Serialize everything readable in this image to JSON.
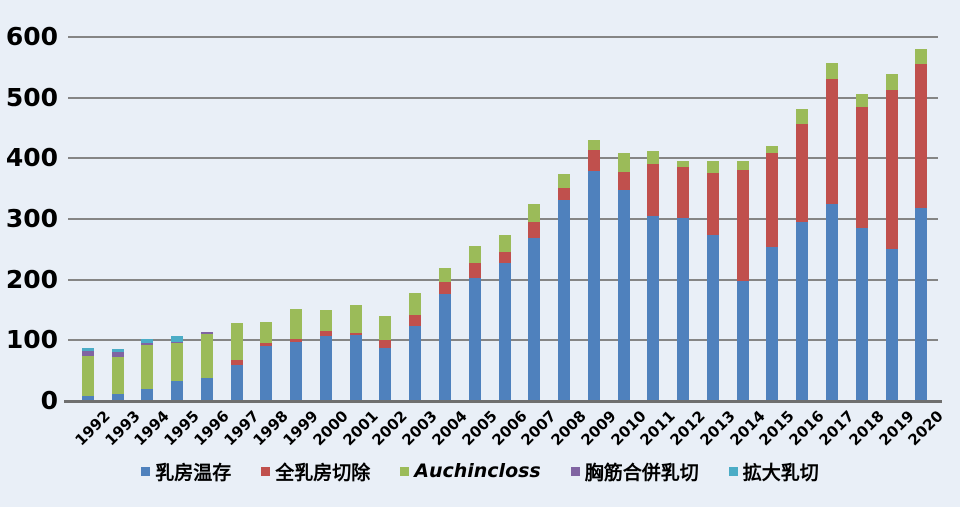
{
  "chart_data": {
    "type": "bar",
    "stacked": true,
    "title": "",
    "xlabel": "",
    "ylabel": "",
    "categories": [
      "1992",
      "1993",
      "1994",
      "1995",
      "1996",
      "1997",
      "1998",
      "1999",
      "2000",
      "2001",
      "2002",
      "2003",
      "2004",
      "2005",
      "2006",
      "2007",
      "2008",
      "2009",
      "2010",
      "2011",
      "2012",
      "2013",
      "2014",
      "2015",
      "2016",
      "2017",
      "2018",
      "2019",
      "2020"
    ],
    "series": [
      {
        "name": "乳房温存",
        "color": "#4f81bd",
        "values": [
          8,
          11,
          20,
          33,
          38,
          60,
          91,
          97,
          107,
          108,
          88,
          123,
          177,
          203,
          228,
          269,
          332,
          379,
          347,
          305,
          302,
          274,
          198,
          254,
          295,
          324,
          285,
          251,
          318
        ]
      },
      {
        "name": "全乳房切除",
        "color": "#c0504d",
        "values": [
          0,
          0,
          0,
          0,
          0,
          7,
          5,
          5,
          8,
          4,
          12,
          18,
          19,
          25,
          18,
          26,
          19,
          35,
          30,
          85,
          84,
          102,
          182,
          154,
          162,
          207,
          200,
          261,
          237
        ]
      },
      {
        "name": "Auchincloss",
        "color": "#9bbb59",
        "italic": true,
        "values": [
          66,
          61,
          72,
          63,
          72,
          62,
          35,
          50,
          35,
          46,
          40,
          37,
          24,
          28,
          28,
          29,
          24,
          17,
          31,
          22,
          9,
          20,
          16,
          13,
          25,
          26,
          21,
          27,
          25
        ]
      },
      {
        "name": "胸筋合併乳切",
        "color": "#8064a2",
        "values": [
          9,
          9,
          3,
          2,
          4,
          0,
          0,
          0,
          0,
          0,
          0,
          0,
          0,
          0,
          0,
          0,
          0,
          0,
          0,
          0,
          0,
          0,
          0,
          0,
          0,
          0,
          0,
          0,
          0
        ]
      },
      {
        "name": "拡大乳切",
        "color": "#4bacc6",
        "values": [
          4,
          4,
          8,
          9,
          0,
          0,
          0,
          0,
          0,
          0,
          0,
          0,
          0,
          0,
          0,
          0,
          0,
          0,
          0,
          0,
          0,
          0,
          0,
          0,
          0,
          0,
          0,
          0,
          0
        ]
      }
    ],
    "ylim": [
      0,
      600
    ],
    "y_ticks": [
      0,
      100,
      200,
      300,
      400,
      500,
      600
    ],
    "grid": true,
    "legend_position": "bottom"
  },
  "colors": {
    "background": "#e9eff7",
    "gridline": "#858585",
    "axis_line": "#6f6f6f",
    "text": "#000000"
  }
}
